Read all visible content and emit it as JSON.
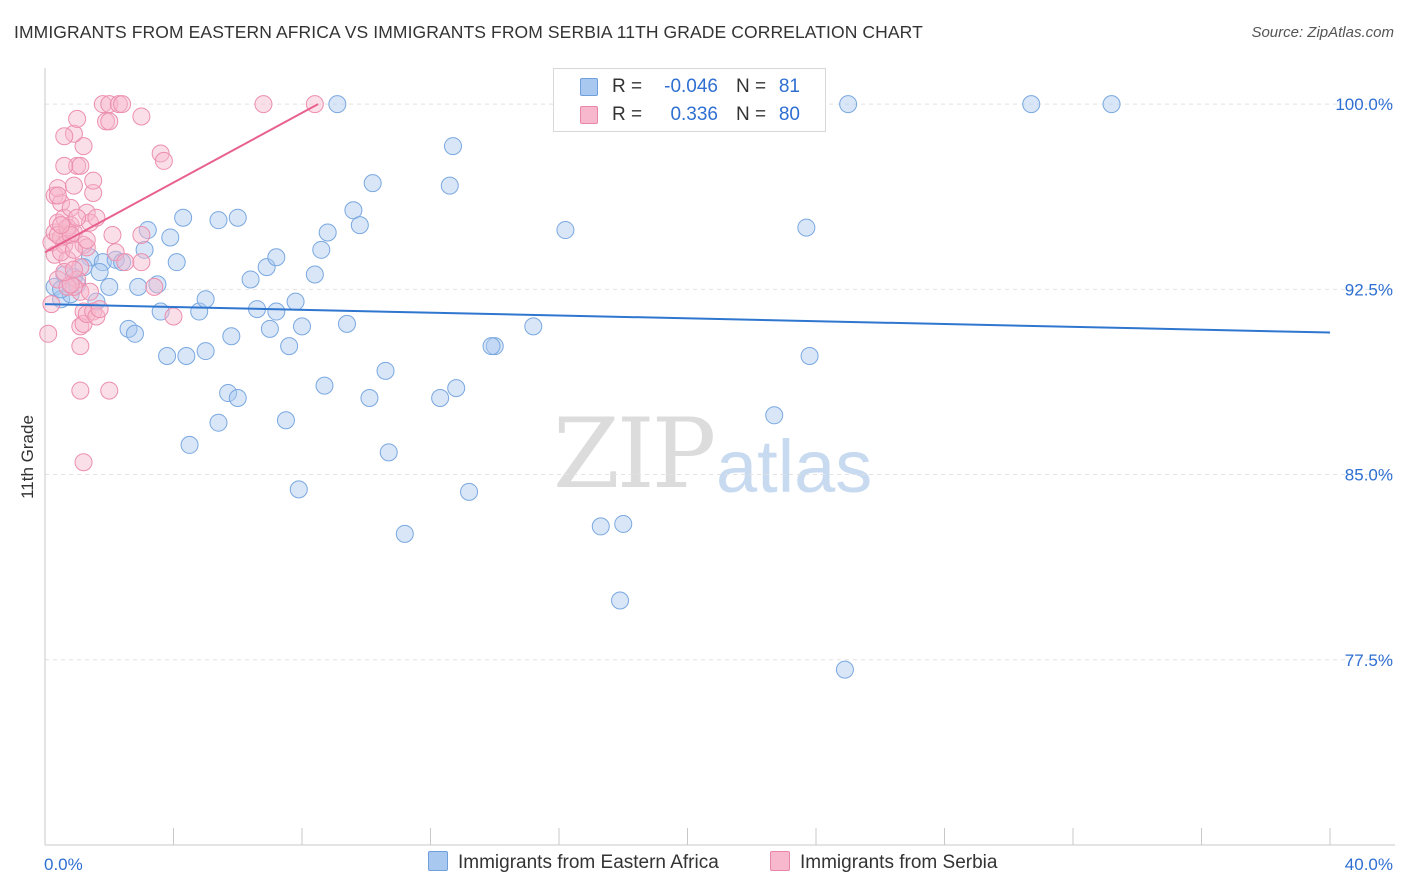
{
  "title": "IMMIGRANTS FROM EASTERN AFRICA VS IMMIGRANTS FROM SERBIA 11TH GRADE CORRELATION CHART",
  "source": "Source: ZipAtlas.com",
  "watermark": {
    "zip": "ZIP",
    "atlas": "atlas"
  },
  "legend": {
    "r_label": "R =",
    "n_label": "N =",
    "series": [
      {
        "r": "-0.046",
        "n": "81",
        "color": "#a9c8f0",
        "border": "#6fa0dc"
      },
      {
        "r": "0.336",
        "n": "80",
        "color": "#f7b8cd",
        "border": "#e886a6"
      }
    ]
  },
  "bottom_legend": [
    "Immigrants from Eastern Africa",
    "Immigrants from Serbia"
  ],
  "colors": {
    "blue": "#2f76cf",
    "pink": "#e8608e",
    "axis_text": "#2e6fd1",
    "grid": "#e2e2e2"
  },
  "chart_data": {
    "type": "scatter",
    "xlabel": "",
    "ylabel": "11th Grade",
    "xlim": [
      0,
      40
    ],
    "ylim": [
      70,
      101.3
    ],
    "x_tick_labels": [
      "0.0%",
      "40.0%"
    ],
    "y_ticks": [
      77.5,
      85.0,
      92.5,
      100.0
    ],
    "y_tick_labels": [
      "77.5%",
      "85.0%",
      "92.5%",
      "100.0%"
    ],
    "series": [
      {
        "name": "Immigrants from Eastern Africa",
        "trend": {
          "x": [
            0,
            40
          ],
          "y": [
            91.9,
            90.75
          ]
        },
        "points": [
          [
            0.3,
            92.6
          ],
          [
            0.6,
            93.1
          ],
          [
            0.9,
            93.0
          ],
          [
            0.5,
            92.1
          ],
          [
            0.8,
            92.3
          ],
          [
            1.4,
            93.8
          ],
          [
            1.2,
            93.4
          ],
          [
            1.8,
            93.6
          ],
          [
            2.2,
            93.7
          ],
          [
            2.0,
            92.6
          ],
          [
            1.6,
            92.0
          ],
          [
            2.4,
            93.6
          ],
          [
            3.1,
            94.1
          ],
          [
            3.2,
            94.9
          ],
          [
            2.9,
            92.6
          ],
          [
            3.5,
            92.7
          ],
          [
            3.9,
            94.6
          ],
          [
            4.1,
            93.6
          ],
          [
            4.3,
            95.4
          ],
          [
            3.6,
            91.6
          ],
          [
            2.6,
            90.9
          ],
          [
            2.8,
            90.7
          ],
          [
            3.8,
            89.8
          ],
          [
            4.4,
            89.8
          ],
          [
            4.8,
            91.6
          ],
          [
            5.0,
            92.1
          ],
          [
            5.0,
            90.0
          ],
          [
            5.4,
            95.3
          ],
          [
            5.8,
            90.6
          ],
          [
            5.7,
            88.3
          ],
          [
            6.0,
            88.1
          ],
          [
            5.4,
            87.1
          ],
          [
            4.5,
            86.2
          ],
          [
            6.0,
            95.4
          ],
          [
            6.4,
            92.9
          ],
          [
            6.6,
            91.7
          ],
          [
            6.9,
            93.4
          ],
          [
            7.2,
            93.8
          ],
          [
            7.0,
            90.9
          ],
          [
            7.2,
            91.6
          ],
          [
            7.6,
            90.2
          ],
          [
            7.5,
            87.2
          ],
          [
            7.8,
            92.0
          ],
          [
            8.0,
            91.0
          ],
          [
            7.9,
            84.4
          ],
          [
            8.4,
            93.1
          ],
          [
            8.8,
            94.8
          ],
          [
            8.6,
            94.1
          ],
          [
            8.7,
            88.6
          ],
          [
            9.1,
            100.0
          ],
          [
            9.4,
            91.1
          ],
          [
            9.6,
            95.7
          ],
          [
            9.8,
            95.1
          ],
          [
            10.1,
            88.1
          ],
          [
            10.2,
            96.8
          ],
          [
            10.6,
            89.2
          ],
          [
            10.7,
            85.9
          ],
          [
            11.2,
            82.6
          ],
          [
            12.3,
            88.1
          ],
          [
            12.6,
            96.7
          ],
          [
            12.7,
            98.3
          ],
          [
            12.8,
            88.5
          ],
          [
            13.2,
            84.3
          ],
          [
            14.0,
            90.2
          ],
          [
            13.9,
            90.2
          ],
          [
            15.2,
            91.0
          ],
          [
            16.2,
            94.9
          ],
          [
            17.1,
            100.0
          ],
          [
            17.3,
            82.9
          ],
          [
            17.9,
            79.9
          ],
          [
            18.0,
            83.0
          ],
          [
            22.7,
            87.4
          ],
          [
            23.7,
            95.0
          ],
          [
            23.8,
            89.8
          ],
          [
            24.9,
            77.1
          ],
          [
            25.0,
            100.0
          ],
          [
            30.7,
            100.0
          ],
          [
            33.2,
            100.0
          ],
          [
            0.5,
            92.5
          ],
          [
            1.0,
            92.7
          ],
          [
            1.7,
            93.2
          ]
        ]
      },
      {
        "name": "Immigrants from Serbia",
        "trend": {
          "x": [
            0,
            8.5
          ],
          "y": [
            94.0,
            100.0
          ]
        },
        "points": [
          [
            0.1,
            90.7
          ],
          [
            0.2,
            91.9
          ],
          [
            0.3,
            93.9
          ],
          [
            0.2,
            94.4
          ],
          [
            0.3,
            94.8
          ],
          [
            0.4,
            95.2
          ],
          [
            0.3,
            96.3
          ],
          [
            0.5,
            96.0
          ],
          [
            0.4,
            96.6
          ],
          [
            0.6,
            95.4
          ],
          [
            0.5,
            94.6
          ],
          [
            0.7,
            94.7
          ],
          [
            0.6,
            94.3
          ],
          [
            0.7,
            93.7
          ],
          [
            0.8,
            95.1
          ],
          [
            0.9,
            94.8
          ],
          [
            0.8,
            95.8
          ],
          [
            0.9,
            96.7
          ],
          [
            1.0,
            97.5
          ],
          [
            1.1,
            97.5
          ],
          [
            1.2,
            98.3
          ],
          [
            0.9,
            98.8
          ],
          [
            1.0,
            99.4
          ],
          [
            0.6,
            98.7
          ],
          [
            0.6,
            97.5
          ],
          [
            1.3,
            95.6
          ],
          [
            1.4,
            95.2
          ],
          [
            1.5,
            96.4
          ],
          [
            1.5,
            96.9
          ],
          [
            1.6,
            95.4
          ],
          [
            1.2,
            94.3
          ],
          [
            1.3,
            94.2
          ],
          [
            1.1,
            93.4
          ],
          [
            1.0,
            92.9
          ],
          [
            1.1,
            92.4
          ],
          [
            0.9,
            92.6
          ],
          [
            1.2,
            91.6
          ],
          [
            1.1,
            91.0
          ],
          [
            1.2,
            91.1
          ],
          [
            1.3,
            91.5
          ],
          [
            1.5,
            91.6
          ],
          [
            1.6,
            91.4
          ],
          [
            1.1,
            90.2
          ],
          [
            1.1,
            88.4
          ],
          [
            2.0,
            88.4
          ],
          [
            1.2,
            85.5
          ],
          [
            1.8,
            100.0
          ],
          [
            2.0,
            100.0
          ],
          [
            2.3,
            100.0
          ],
          [
            2.4,
            100.0
          ],
          [
            1.9,
            99.3
          ],
          [
            2.0,
            99.3
          ],
          [
            3.0,
            99.5
          ],
          [
            3.6,
            98.0
          ],
          [
            3.7,
            97.7
          ],
          [
            2.1,
            94.7
          ],
          [
            2.2,
            94.0
          ],
          [
            2.5,
            93.6
          ],
          [
            3.0,
            94.7
          ],
          [
            3.0,
            93.6
          ],
          [
            3.4,
            92.6
          ],
          [
            4.0,
            91.4
          ],
          [
            6.8,
            100.0
          ],
          [
            8.4,
            100.0
          ],
          [
            0.4,
            94.7
          ],
          [
            0.5,
            94.0
          ],
          [
            0.7,
            95.0
          ],
          [
            0.8,
            94.7
          ],
          [
            0.9,
            94.1
          ],
          [
            0.4,
            92.9
          ],
          [
            0.7,
            92.6
          ],
          [
            0.8,
            92.7
          ],
          [
            0.4,
            96.3
          ],
          [
            1.0,
            95.4
          ],
          [
            1.3,
            94.5
          ],
          [
            0.5,
            95.1
          ],
          [
            0.6,
            93.2
          ],
          [
            0.9,
            93.3
          ],
          [
            1.4,
            92.4
          ],
          [
            1.7,
            91.7
          ]
        ]
      }
    ]
  }
}
